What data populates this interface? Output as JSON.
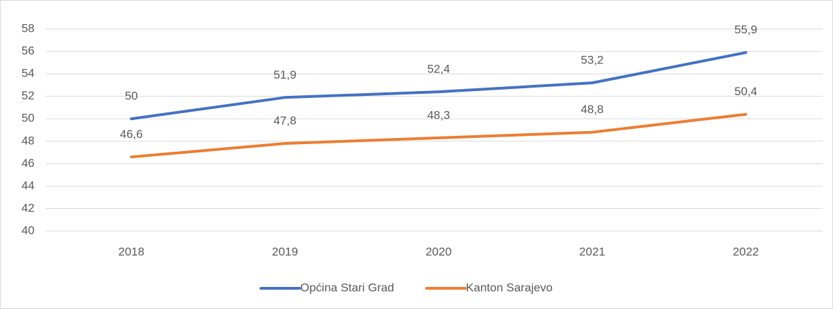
{
  "chart_data": {
    "type": "line",
    "categories": [
      "2018",
      "2019",
      "2020",
      "2021",
      "2022"
    ],
    "series": [
      {
        "name": "Općina Stari Grad",
        "color": "#4472c4",
        "values": [
          50,
          51.9,
          52.4,
          53.2,
          55.9
        ],
        "value_labels": [
          "50",
          "51,9",
          "52,4",
          "53,2",
          "55,9"
        ]
      },
      {
        "name": "Kanton Sarajevo",
        "color": "#ed7d31",
        "values": [
          46.6,
          47.8,
          48.3,
          48.8,
          50.4
        ],
        "value_labels": [
          "46,6",
          "47,8",
          "48,3",
          "48,8",
          "50,4"
        ]
      }
    ],
    "ylim": [
      40,
      58
    ],
    "yticks": [
      40,
      42,
      44,
      46,
      48,
      50,
      52,
      54,
      56,
      58
    ],
    "grid": true,
    "legend": "bottom"
  }
}
